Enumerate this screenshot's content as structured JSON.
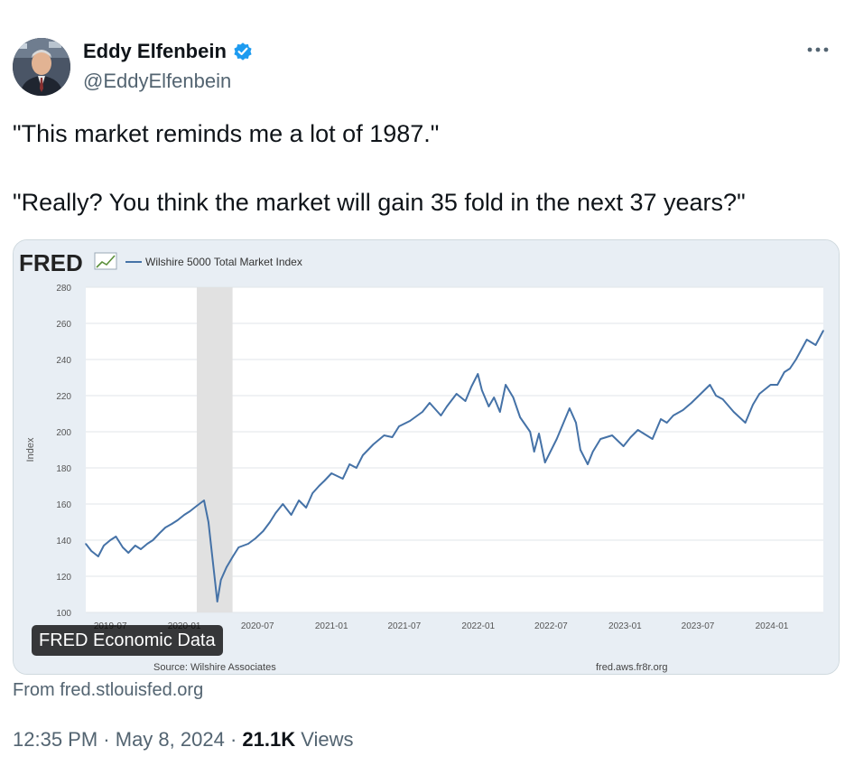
{
  "author": {
    "name": "Eddy Elfenbein",
    "handle": "@EddyElfenbein",
    "verified_icon": "verified-badge-icon",
    "verified_color": "#1d9bf0"
  },
  "tweet": {
    "line1": "\"This market reminds me a lot of 1987.\"",
    "line2": "\"Really? You think the market will gain 35 fold in the next 37 years?\""
  },
  "card": {
    "logo_text": "FRED",
    "badge": "FRED Economic Data",
    "source_label": "Source: Wilshire Associates",
    "url_label": "fred.aws.fr8r.org",
    "from_text": "From fred.stlouisfed.org"
  },
  "meta": {
    "time": "12:35 PM",
    "date": "May 8, 2024",
    "views_count": "21.1K",
    "views_label": "Views",
    "sep": "·"
  },
  "chart_data": {
    "type": "line",
    "title": "",
    "legend": [
      "Wilshire 5000 Total Market Index"
    ],
    "ylabel": "Index",
    "xlabel": "",
    "ylim": [
      100,
      280
    ],
    "yticks": [
      100,
      120,
      140,
      160,
      180,
      200,
      220,
      240,
      260,
      280
    ],
    "xtick_labels": [
      "2019-07",
      "2020-01",
      "2020-07",
      "2021-01",
      "2021-07",
      "2022-01",
      "2022-07",
      "2023-01",
      "2023-07",
      "2024-01"
    ],
    "xlim": [
      "2019-05-01",
      "2024-05-08"
    ],
    "grid": true,
    "line_color": "#4572a7",
    "recession_shading": [
      [
        "2020-02-01",
        "2020-04-30"
      ]
    ],
    "series": [
      {
        "name": "Wilshire 5000 Total Market Index",
        "x": [
          "2019-05-01",
          "2019-05-15",
          "2019-06-01",
          "2019-06-15",
          "2019-07-01",
          "2019-07-15",
          "2019-08-01",
          "2019-08-15",
          "2019-09-01",
          "2019-09-15",
          "2019-10-01",
          "2019-10-15",
          "2019-11-01",
          "2019-11-15",
          "2019-12-01",
          "2019-12-15",
          "2020-01-01",
          "2020-01-15",
          "2020-02-01",
          "2020-02-19",
          "2020-03-01",
          "2020-03-12",
          "2020-03-23",
          "2020-04-01",
          "2020-04-15",
          "2020-05-01",
          "2020-05-15",
          "2020-06-08",
          "2020-06-26",
          "2020-07-15",
          "2020-08-01",
          "2020-08-15",
          "2020-09-02",
          "2020-09-23",
          "2020-10-12",
          "2020-10-30",
          "2020-11-15",
          "2020-12-01",
          "2020-12-15",
          "2021-01-01",
          "2021-01-29",
          "2021-02-15",
          "2021-03-04",
          "2021-03-20",
          "2021-04-15",
          "2021-05-12",
          "2021-06-01",
          "2021-06-18",
          "2021-07-15",
          "2021-08-15",
          "2021-09-02",
          "2021-09-30",
          "2021-10-15",
          "2021-11-08",
          "2021-11-30",
          "2021-12-15",
          "2021-12-31",
          "2022-01-10",
          "2022-01-27",
          "2022-02-09",
          "2022-02-24",
          "2022-03-10",
          "2022-03-29",
          "2022-04-15",
          "2022-05-10",
          "2022-05-20",
          "2022-06-01",
          "2022-06-16",
          "2022-07-15",
          "2022-08-16",
          "2022-09-01",
          "2022-09-12",
          "2022-09-30",
          "2022-10-13",
          "2022-11-01",
          "2022-11-30",
          "2022-12-28",
          "2023-01-15",
          "2023-02-02",
          "2023-03-10",
          "2023-03-31",
          "2023-04-15",
          "2023-05-01",
          "2023-05-25",
          "2023-06-15",
          "2023-07-31",
          "2023-08-15",
          "2023-09-01",
          "2023-09-28",
          "2023-10-27",
          "2023-11-15",
          "2023-12-01",
          "2023-12-29",
          "2024-01-15",
          "2024-02-01",
          "2024-02-15",
          "2024-03-01",
          "2024-03-28",
          "2024-04-19",
          "2024-05-08"
        ],
        "values": [
          138,
          134,
          131,
          137,
          140,
          142,
          136,
          133,
          137,
          135,
          138,
          140,
          144,
          147,
          149,
          151,
          154,
          156,
          159,
          162,
          150,
          128,
          106,
          118,
          125,
          131,
          136,
          138,
          141,
          145,
          150,
          155,
          160,
          154,
          162,
          158,
          166,
          170,
          173,
          177,
          174,
          182,
          180,
          187,
          193,
          198,
          197,
          203,
          206,
          211,
          216,
          209,
          214,
          221,
          217,
          225,
          232,
          223,
          214,
          219,
          211,
          226,
          219,
          208,
          200,
          189,
          199,
          183,
          196,
          213,
          205,
          190,
          182,
          189,
          196,
          198,
          192,
          197,
          201,
          196,
          207,
          205,
          209,
          212,
          216,
          226,
          220,
          218,
          211,
          205,
          215,
          221,
          226,
          226,
          233,
          235,
          240,
          251,
          248,
          256
        ]
      }
    ]
  }
}
